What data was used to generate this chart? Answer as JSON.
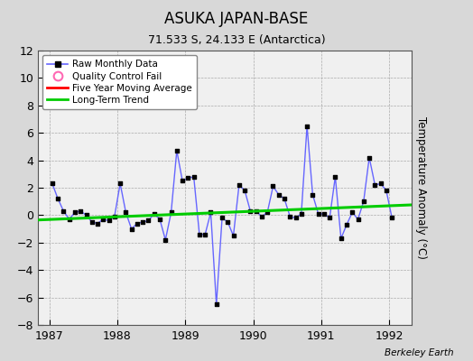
{
  "title": "ASUKA JAPAN-BASE",
  "subtitle": "71.533 S, 24.133 E (Antarctica)",
  "ylabel": "Temperature Anomaly (°C)",
  "credit": "Berkeley Earth",
  "background_color": "#d8d8d8",
  "plot_bg_color": "#f0f0f0",
  "ylim": [
    -8,
    12
  ],
  "yticks": [
    -8,
    -6,
    -4,
    -2,
    0,
    2,
    4,
    6,
    8,
    10,
    12
  ],
  "xlim_start": 1986.83,
  "xlim_end": 1992.33,
  "xticks": [
    1987,
    1988,
    1989,
    1990,
    1991,
    1992
  ],
  "raw_x": [
    1987.042,
    1987.125,
    1987.208,
    1987.292,
    1987.375,
    1987.458,
    1987.542,
    1987.625,
    1987.708,
    1987.792,
    1987.875,
    1987.958,
    1988.042,
    1988.125,
    1988.208,
    1988.292,
    1988.375,
    1988.458,
    1988.542,
    1988.625,
    1988.708,
    1988.792,
    1988.875,
    1988.958,
    1989.042,
    1989.125,
    1989.208,
    1989.292,
    1989.375,
    1989.458,
    1989.542,
    1989.625,
    1989.708,
    1989.792,
    1989.875,
    1989.958,
    1990.042,
    1990.125,
    1990.208,
    1990.292,
    1990.375,
    1990.458,
    1990.542,
    1990.625,
    1990.708,
    1990.792,
    1990.875,
    1990.958,
    1991.042,
    1991.125,
    1991.208,
    1991.292,
    1991.375,
    1991.458,
    1991.542,
    1991.625,
    1991.708,
    1991.792,
    1991.875,
    1991.958,
    1992.042
  ],
  "raw_y": [
    2.3,
    1.2,
    0.3,
    -0.3,
    0.2,
    0.3,
    0.0,
    -0.5,
    -0.6,
    -0.3,
    -0.4,
    -0.1,
    2.3,
    0.2,
    -1.0,
    -0.6,
    -0.5,
    -0.4,
    0.1,
    -0.3,
    -1.8,
    0.2,
    4.7,
    2.5,
    2.7,
    2.8,
    -1.4,
    -1.4,
    0.2,
    -6.5,
    -0.2,
    -0.5,
    -1.5,
    2.2,
    1.8,
    0.3,
    0.3,
    -0.1,
    0.2,
    2.1,
    1.5,
    1.2,
    -0.1,
    -0.2,
    0.1,
    6.5,
    1.5,
    0.1,
    0.1,
    -0.2,
    2.8,
    -1.7,
    -0.7,
    0.2,
    -0.3,
    1.0,
    4.2,
    2.2,
    2.3,
    1.8,
    -0.2
  ],
  "trend_x": [
    1986.83,
    1992.33
  ],
  "trend_y": [
    -0.35,
    0.75
  ],
  "line_color": "#6666ff",
  "marker_color": "#000000",
  "trend_color": "#00cc00",
  "mavg_color": "#ff0000"
}
